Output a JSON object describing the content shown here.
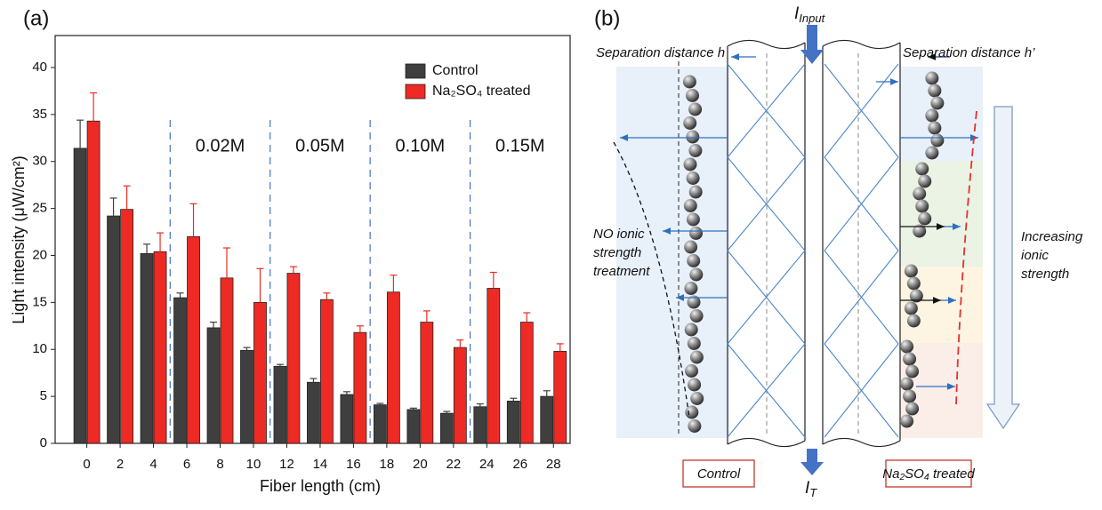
{
  "chart_data": {
    "type": "bar",
    "panel_label": "(a)",
    "x_label": "Fiber length (cm)",
    "y_label": "Light intensity (μW/cm²)",
    "x": [
      0,
      2,
      4,
      6,
      8,
      10,
      12,
      14,
      16,
      18,
      20,
      22,
      24,
      26,
      28
    ],
    "xlim": [
      -1.9,
      29
    ],
    "xticks": [
      0,
      2,
      4,
      6,
      8,
      10,
      12,
      14,
      16,
      18,
      20,
      22,
      24,
      26,
      28
    ],
    "ylim": [
      0,
      43.4
    ],
    "yticks": [
      0,
      5,
      10,
      15,
      20,
      25,
      30,
      35,
      40
    ],
    "legend_position": "top-right",
    "series": [
      {
        "name": "Control",
        "color": "#3f3f3f",
        "values": [
          31.4,
          24.2,
          20.2,
          15.5,
          12.3,
          9.9,
          8.2,
          6.5,
          5.2,
          4.1,
          3.6,
          3.2,
          3.9,
          4.5,
          5.0
        ],
        "errors": [
          3.0,
          1.9,
          1.0,
          0.5,
          0.6,
          0.3,
          0.2,
          0.4,
          0.3,
          0.15,
          0.15,
          0.2,
          0.3,
          0.3,
          0.6
        ]
      },
      {
        "name": "Na₂SO₄ treated",
        "color": "#ee2a24",
        "values": [
          34.3,
          24.9,
          20.4,
          22.0,
          17.6,
          15.0,
          18.1,
          15.3,
          11.8,
          16.1,
          12.9,
          10.2,
          16.5,
          12.9,
          9.8
        ],
        "errors": [
          3.0,
          2.5,
          2.0,
          3.5,
          3.2,
          3.6,
          0.7,
          0.7,
          0.7,
          1.8,
          1.2,
          0.8,
          1.7,
          1.0,
          0.8
        ]
      }
    ],
    "dividers": [
      5,
      11,
      17,
      23
    ],
    "divider_color": "#4472c4",
    "annotations": [
      {
        "text": "0.02M",
        "x": 8
      },
      {
        "text": "0.05M",
        "x": 14
      },
      {
        "text": "0.10M",
        "x": 20
      },
      {
        "text": "0.15M",
        "x": 26
      }
    ]
  },
  "panel_b": {
    "label": "(b)",
    "input": {
      "symbol": "I",
      "subscript": "Input"
    },
    "output": {
      "symbol": "I",
      "subscript": "T"
    },
    "left_label": "Separation distance h",
    "right_label": "Separation distance h’",
    "left_note": [
      "NO ionic",
      "strength",
      "treatment"
    ],
    "right_note": [
      "Increasing",
      "ionic",
      "strength"
    ],
    "left_box": "Control",
    "right_box": "Na₂SO₄ treated"
  }
}
